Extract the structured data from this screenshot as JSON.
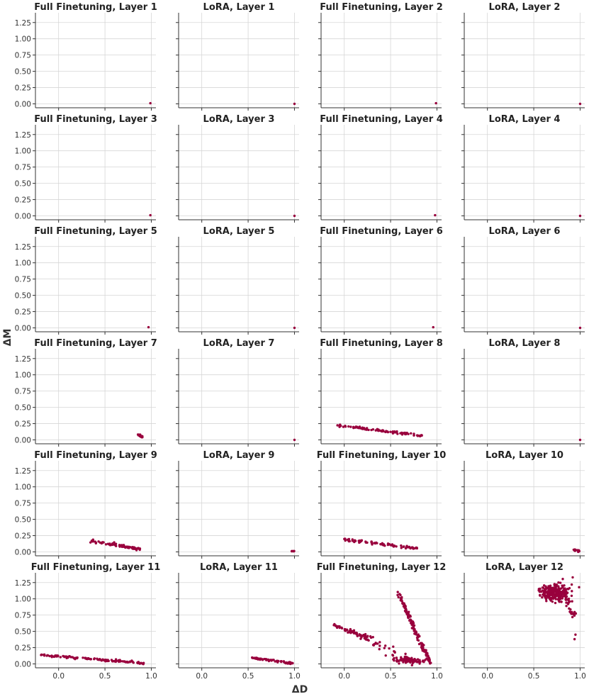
{
  "figure": {
    "xlabel": "ΔD",
    "ylabel": "ΔM",
    "point_color": "#99003d"
  },
  "chart_data": {
    "type": "scatter",
    "layout": {
      "rows": 6,
      "cols": 4
    },
    "shared_axes": {
      "xlim": [
        -0.25,
        1.05
      ],
      "ylim": [
        -0.06,
        1.4
      ],
      "xticks": [
        0.0,
        0.5,
        1.0
      ],
      "xtick_labels": [
        "0.0",
        "0.5",
        "1.0"
      ],
      "yticks": [
        0.0,
        0.25,
        0.5,
        0.75,
        1.0,
        1.25
      ],
      "ytick_labels": [
        "0.00",
        "0.25",
        "0.50",
        "0.75",
        "1.00",
        "1.25"
      ],
      "grid": true
    },
    "panels": [
      {
        "title": "Full Finetuning, Layer 1",
        "clusters": [
          {
            "shape": "point",
            "at": [
              0.99,
              0.01
            ]
          }
        ]
      },
      {
        "title": "LoRA, Layer 1",
        "clusters": [
          {
            "shape": "point",
            "at": [
              1.0,
              0.0
            ]
          }
        ]
      },
      {
        "title": "Full Finetuning, Layer 2",
        "clusters": [
          {
            "shape": "point",
            "at": [
              0.99,
              0.01
            ]
          }
        ]
      },
      {
        "title": "LoRA, Layer 2",
        "clusters": [
          {
            "shape": "point",
            "at": [
              1.0,
              0.0
            ]
          }
        ]
      },
      {
        "title": "Full Finetuning, Layer 3",
        "clusters": [
          {
            "shape": "point",
            "at": [
              0.99,
              0.01
            ]
          }
        ]
      },
      {
        "title": "LoRA, Layer 3",
        "clusters": [
          {
            "shape": "point",
            "at": [
              1.0,
              0.0
            ]
          }
        ]
      },
      {
        "title": "Full Finetuning, Layer 4",
        "clusters": [
          {
            "shape": "point",
            "at": [
              0.98,
              0.01
            ]
          }
        ]
      },
      {
        "title": "LoRA, Layer 4",
        "clusters": [
          {
            "shape": "point",
            "at": [
              1.0,
              0.0
            ]
          }
        ]
      },
      {
        "title": "Full Finetuning, Layer 5",
        "clusters": [
          {
            "shape": "point",
            "at": [
              0.97,
              0.01
            ]
          }
        ]
      },
      {
        "title": "LoRA, Layer 5",
        "clusters": [
          {
            "shape": "point",
            "at": [
              1.0,
              0.0
            ]
          }
        ]
      },
      {
        "title": "Full Finetuning, Layer 6",
        "clusters": [
          {
            "shape": "point",
            "at": [
              0.96,
              0.01
            ]
          }
        ]
      },
      {
        "title": "LoRA, Layer 6",
        "clusters": [
          {
            "shape": "point",
            "at": [
              1.0,
              0.0
            ]
          }
        ]
      },
      {
        "title": "Full Finetuning, Layer 7",
        "clusters": [
          {
            "shape": "band",
            "from": [
              0.85,
              0.09
            ],
            "to": [
              0.91,
              0.04
            ],
            "n": 14,
            "spread": 0.008
          }
        ]
      },
      {
        "title": "LoRA, Layer 7",
        "clusters": [
          {
            "shape": "point",
            "at": [
              1.0,
              0.0
            ]
          }
        ]
      },
      {
        "title": "Full Finetuning, Layer 8",
        "clusters": [
          {
            "shape": "band",
            "from": [
              -0.09,
              0.23
            ],
            "to": [
              0.85,
              0.06
            ],
            "n": 85,
            "spread": 0.01
          }
        ]
      },
      {
        "title": "LoRA, Layer 8",
        "clusters": [
          {
            "shape": "point",
            "at": [
              1.0,
              0.0
            ]
          }
        ]
      },
      {
        "title": "Full Finetuning, Layer 9",
        "clusters": [
          {
            "shape": "band",
            "from": [
              0.35,
              0.17
            ],
            "to": [
              0.88,
              0.04
            ],
            "n": 70,
            "spread": 0.01
          }
        ]
      },
      {
        "title": "LoRA, Layer 9",
        "clusters": [
          {
            "shape": "band",
            "from": [
              0.97,
              0.015
            ],
            "to": [
              1.0,
              0.005
            ],
            "n": 8,
            "spread": 0.004
          }
        ]
      },
      {
        "title": "Full Finetuning, Layer 10",
        "clusters": [
          {
            "shape": "band",
            "from": [
              0.0,
              0.19
            ],
            "to": [
              0.81,
              0.05
            ],
            "n": 80,
            "spread": 0.01
          }
        ]
      },
      {
        "title": "LoRA, Layer 10",
        "clusters": [
          {
            "shape": "band",
            "from": [
              0.92,
              0.04
            ],
            "to": [
              0.99,
              0.01
            ],
            "n": 12,
            "spread": 0.006
          }
        ]
      },
      {
        "title": "Full Finetuning, Layer 11",
        "clusters": [
          {
            "shape": "band",
            "from": [
              -0.2,
              0.14
            ],
            "to": [
              0.92,
              0.01
            ],
            "n": 120,
            "spread": 0.008
          }
        ]
      },
      {
        "title": "LoRA, Layer 11",
        "clusters": [
          {
            "shape": "band",
            "from": [
              0.55,
              0.09
            ],
            "to": [
              0.98,
              0.01
            ],
            "n": 70,
            "spread": 0.008
          }
        ]
      },
      {
        "title": "Full Finetuning, Layer 12",
        "clusters": [
          {
            "shape": "band",
            "from": [
              -0.12,
              0.6
            ],
            "to": [
              0.25,
              0.4
            ],
            "n": 60,
            "spread": 0.02
          },
          {
            "shape": "band",
            "from": [
              0.25,
              0.4
            ],
            "to": [
              0.7,
              0.05
            ],
            "n": 40,
            "spread": 0.04
          },
          {
            "shape": "band",
            "from": [
              0.58,
              1.1
            ],
            "to": [
              0.92,
              0.03
            ],
            "n": 140,
            "spread": 0.015
          },
          {
            "shape": "cloud",
            "center": [
              0.7,
              0.05
            ],
            "radius": [
              0.22,
              0.04
            ],
            "n": 60
          }
        ]
      },
      {
        "title": "LoRA, Layer 12",
        "clusters": [
          {
            "shape": "cloud",
            "center": [
              0.72,
              1.1
            ],
            "radius": [
              0.17,
              0.14
            ],
            "n": 260
          },
          {
            "shape": "band",
            "from": [
              0.82,
              1.05
            ],
            "to": [
              0.93,
              0.75
            ],
            "n": 30,
            "spread": 0.04
          },
          {
            "shape": "point",
            "at": [
              0.95,
              0.45
            ]
          },
          {
            "shape": "point",
            "at": [
              0.94,
              0.38
            ]
          },
          {
            "shape": "point",
            "at": [
              0.92,
              1.33
            ]
          }
        ]
      }
    ]
  }
}
